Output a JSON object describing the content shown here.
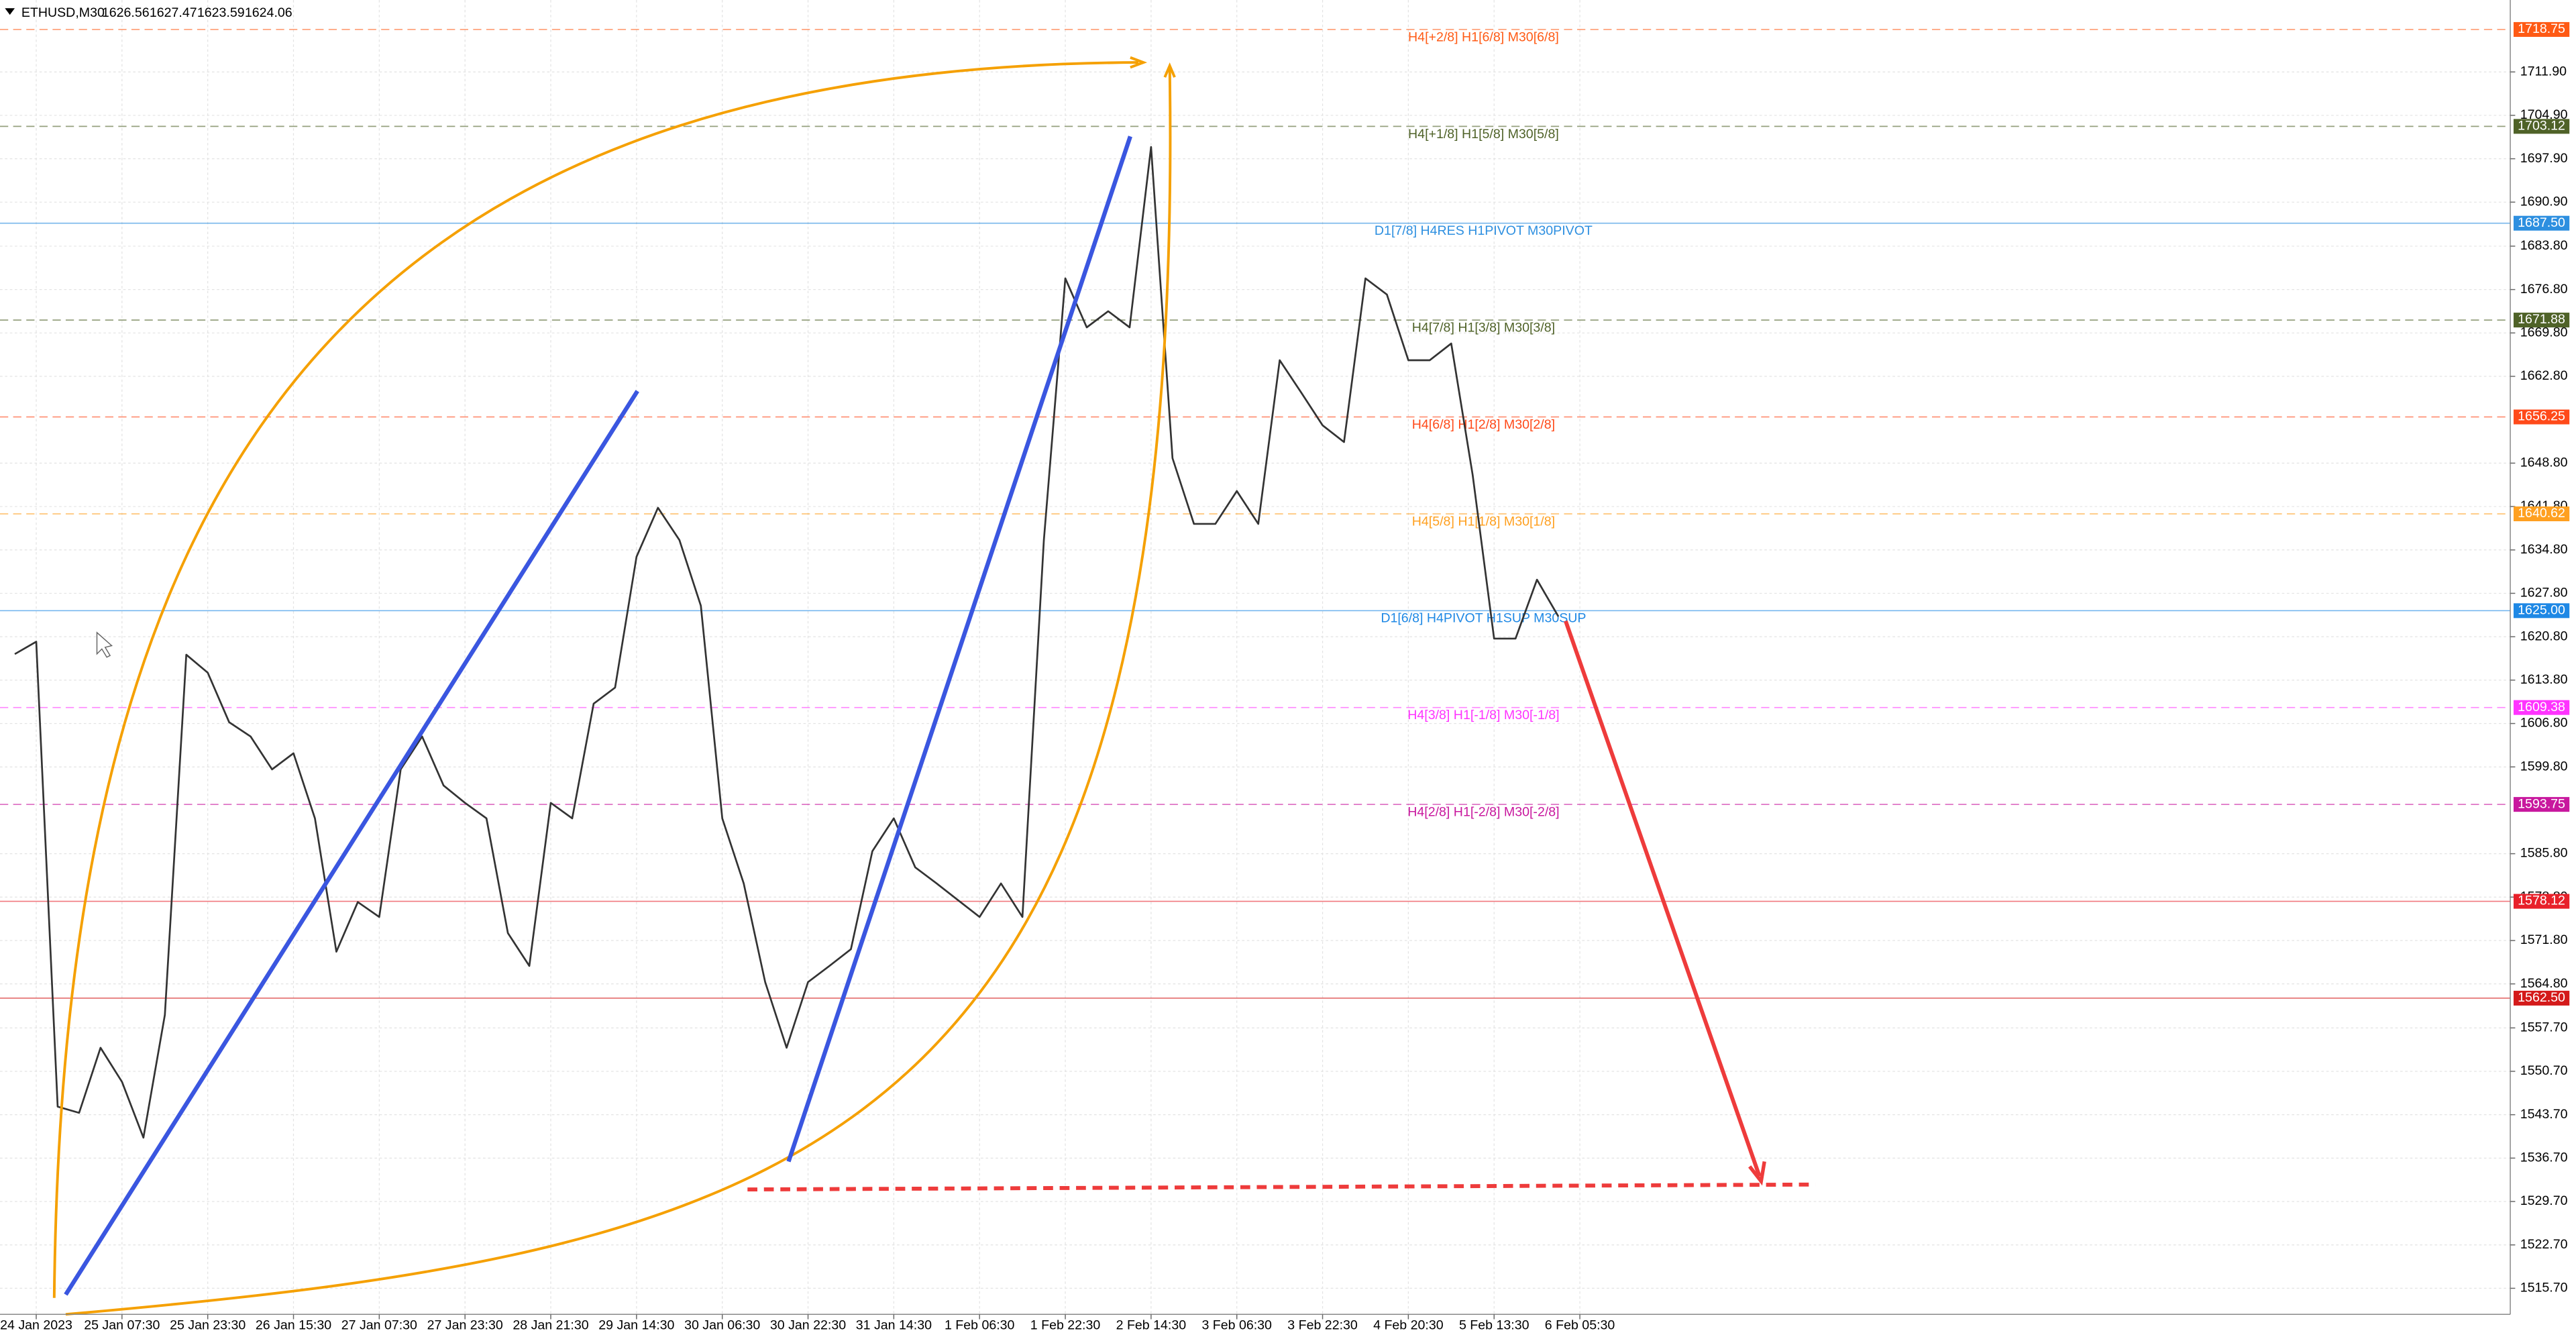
{
  "chart_data": {
    "type": "line",
    "title": "ETHUSD,M30",
    "quote": [
      1626.56,
      1627.47,
      1623.59,
      1624.06
    ],
    "color": "#333333",
    "grid": true,
    "ylim": [
      1511.5,
      1723.5
    ],
    "yticks": [
      {
        "value": 1711.9,
        "label": "1711.90"
      },
      {
        "value": 1704.9,
        "label": "1704.90"
      },
      {
        "value": 1697.9,
        "label": "1697.90"
      },
      {
        "value": 1690.9,
        "label": "1690.90"
      },
      {
        "value": 1683.8,
        "label": "1683.80"
      },
      {
        "value": 1676.8,
        "label": "1676.80"
      },
      {
        "value": 1669.8,
        "label": "1669.80"
      },
      {
        "value": 1662.8,
        "label": "1662.80"
      },
      {
        "value": 1648.8,
        "label": "1648.80"
      },
      {
        "value": 1641.8,
        "label": "1641.80"
      },
      {
        "value": 1634.8,
        "label": "1634.80"
      },
      {
        "value": 1627.8,
        "label": "1627.80"
      },
      {
        "value": 1620.8,
        "label": "1620.80"
      },
      {
        "value": 1613.8,
        "label": "1613.80"
      },
      {
        "value": 1606.8,
        "label": "1606.80"
      },
      {
        "value": 1599.8,
        "label": "1599.80"
      },
      {
        "value": 1585.8,
        "label": "1585.80"
      },
      {
        "value": 1578.8,
        "label": "1578.80"
      },
      {
        "value": 1571.8,
        "label": "1571.80"
      },
      {
        "value": 1564.8,
        "label": "1564.80"
      },
      {
        "value": 1557.7,
        "label": "1557.70"
      },
      {
        "value": 1550.7,
        "label": "1550.70"
      },
      {
        "value": 1543.7,
        "label": "1543.70"
      },
      {
        "value": 1536.7,
        "label": "1536.70"
      },
      {
        "value": 1529.7,
        "label": "1529.70"
      },
      {
        "value": 1522.7,
        "label": "1522.70"
      },
      {
        "value": 1515.7,
        "label": "1515.70"
      }
    ],
    "categories": [
      null,
      "24 Jan 2023",
      null,
      null,
      null,
      "25 Jan 07:30",
      null,
      null,
      null,
      "25 Jan 23:30",
      null,
      null,
      null,
      "26 Jan 15:30",
      null,
      null,
      null,
      "27 Jan 07:30",
      null,
      null,
      null,
      "27 Jan 23:30",
      null,
      null,
      null,
      "28 Jan 21:30",
      null,
      null,
      null,
      "29 Jan 14:30",
      null,
      null,
      null,
      "30 Jan 06:30",
      null,
      null,
      null,
      "30 Jan 22:30",
      null,
      null,
      null,
      "31 Jan 14:30",
      null,
      null,
      null,
      "1 Feb 06:30",
      null,
      null,
      null,
      "1 Feb 22:30",
      null,
      null,
      null,
      "2 Feb 14:30",
      null,
      null,
      null,
      "3 Feb 06:30",
      null,
      null,
      null,
      "3 Feb 22:30",
      null,
      null,
      null,
      "4 Feb 20:30",
      null,
      null,
      null,
      "5 Feb 13:30",
      null,
      null,
      null,
      "6 Feb 05:30"
    ],
    "values": [
      1618,
      1620,
      1545,
      1544,
      1554.5,
      1549,
      1540,
      1559.8,
      1617.9,
      1615,
      1607,
      1604.7,
      1599.4,
      1602,
      1591.5,
      1570,
      1578,
      1575.6,
      1599.4,
      1604.7,
      1596.8,
      1594,
      1591.5,
      1573,
      1567.7,
      1594,
      1591.5,
      1610,
      1612.6,
      1633.7,
      1641.6,
      1636.4,
      1625.8,
      1591.5,
      1581,
      1565.1,
      1554.5,
      1565.1,
      1567.7,
      1570.4,
      1586.2,
      1591.5,
      1583.6,
      1581,
      1578.3,
      1575.6,
      1581,
      1575.6,
      1636.4,
      1678.6,
      1670.7,
      1673.3,
      1670.7,
      1699.8,
      1649.6,
      1639,
      1639,
      1644.3,
      1639,
      1665.4,
      1660.2,
      1654.9,
      1652.2,
      1678.6,
      1676,
      1665.4,
      1665.4,
      1668.1,
      1646.9,
      1620.5,
      1620.5,
      1630,
      1624.06,
      null
    ],
    "levels": [
      {
        "value": 1718.75,
        "name": "H4[+2/8] H1[6/8] M30[6/8]",
        "color": "#ff5a14",
        "style": "dashed"
      },
      {
        "value": 1703.12,
        "name": "H4[+1/8] H1[5/8] M30[5/8]",
        "color": "#4f6228",
        "style": "dashed"
      },
      {
        "value": 1687.5,
        "value_label": "1687.50",
        "name": "D1[7/8] H4RES H1PIVOT M30PIVOT",
        "color": "#2d8fe0",
        "style": "solid"
      },
      {
        "value": 1671.88,
        "name": "H4[7/8] H1[3/8] M30[3/8]",
        "color": "#4f6228",
        "style": "dashed"
      },
      {
        "value": 1656.25,
        "name": "H4[6/8] H1[2/8] M30[2/8]",
        "color": "#ff4a1a",
        "style": "dashed"
      },
      {
        "value": 1640.62,
        "name": "H4[5/8] H1[1/8] M30[1/8]",
        "color": "#ffa020",
        "style": "dashed"
      },
      {
        "value": 1625,
        "value_label": "1625.00",
        "name": "D1[6/8] H4PIVOT H1SUP M30SUP",
        "color": "#1e88e5",
        "style": "solid"
      },
      {
        "value": 1609.38,
        "name": "H4[3/8] H1[-1/8] M30[-1/8]",
        "color": "#ff33ff",
        "style": "dashed"
      },
      {
        "value": 1593.75,
        "name": "H4[2/8] H1[-2/8] M30[-2/8]",
        "color": "#c8189e",
        "style": "dashed"
      },
      {
        "value": 1578.12,
        "color": "#e8202a",
        "style": "solid"
      },
      {
        "value": 1562.5,
        "value_label": "1562.50",
        "color": "#d41a1a",
        "style": "solid"
      }
    ]
  }
}
